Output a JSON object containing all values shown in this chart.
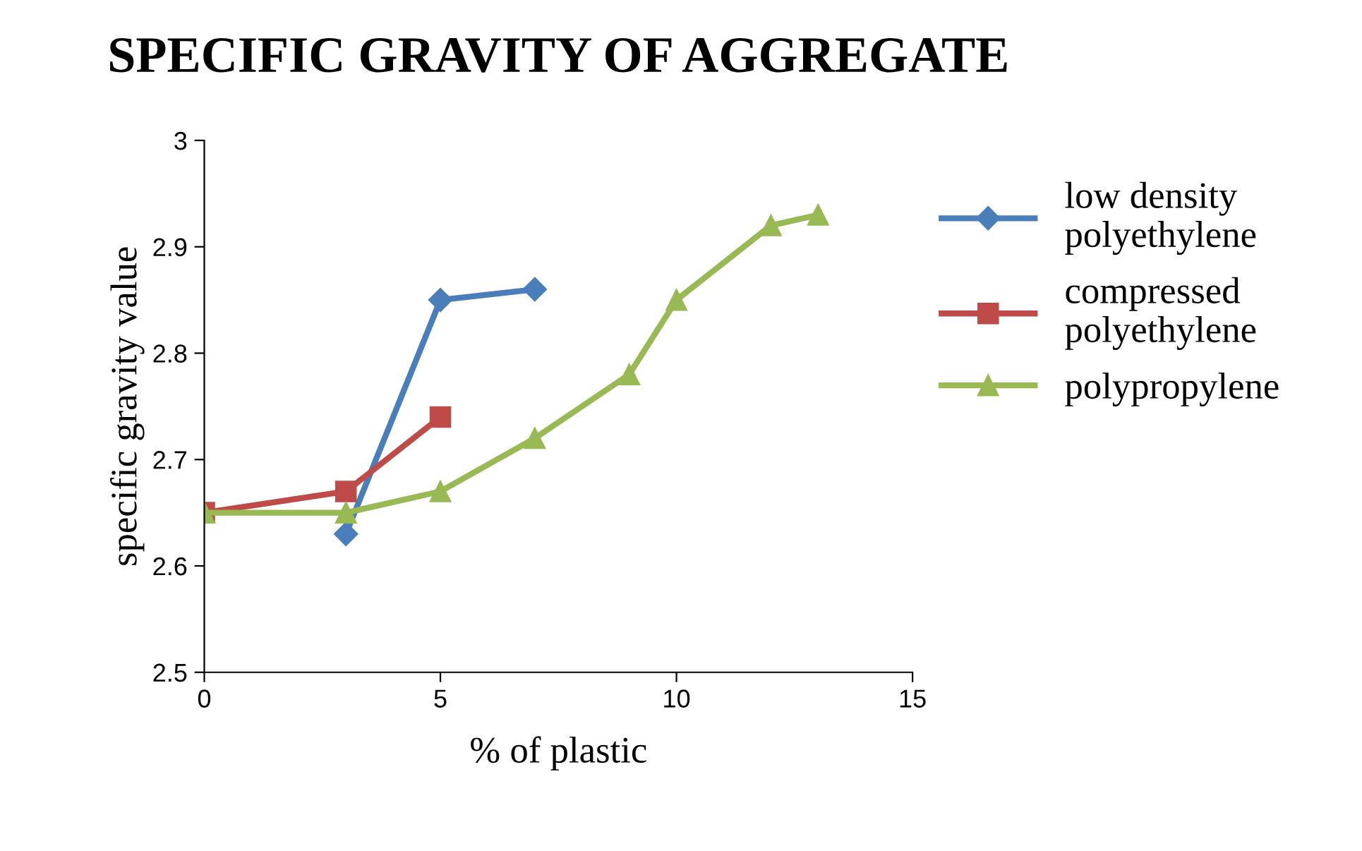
{
  "chart_data": {
    "type": "line",
    "title": "SPECIFIC GRAVITY OF AGGREGATE",
    "xlabel": "% of plastic",
    "ylabel": "specific gravity value",
    "xlim": [
      0,
      15
    ],
    "xticks": [
      0,
      5,
      10,
      15
    ],
    "ylim": [
      2.5,
      3
    ],
    "yticks": [
      2.5,
      2.6,
      2.7,
      2.8,
      2.9,
      3
    ],
    "grid": false,
    "legend": "right",
    "line_style": "solid",
    "series": [
      {
        "name": "low density polyethylene",
        "color": "#4a7ebb",
        "marker": "diamond",
        "x": [
          3,
          5,
          7
        ],
        "values": [
          2.63,
          2.85,
          2.86
        ]
      },
      {
        "name": "compressed polyethylene",
        "color": "#be4b48",
        "marker": "square",
        "x": [
          0,
          3,
          5
        ],
        "values": [
          2.65,
          2.67,
          2.74
        ]
      },
      {
        "name": "polypropylene",
        "color": "#98b954",
        "marker": "triangle",
        "x": [
          0,
          3,
          5,
          7,
          9,
          10,
          12,
          13
        ],
        "values": [
          2.65,
          2.65,
          2.67,
          2.72,
          2.78,
          2.85,
          2.92,
          2.93
        ]
      }
    ]
  }
}
